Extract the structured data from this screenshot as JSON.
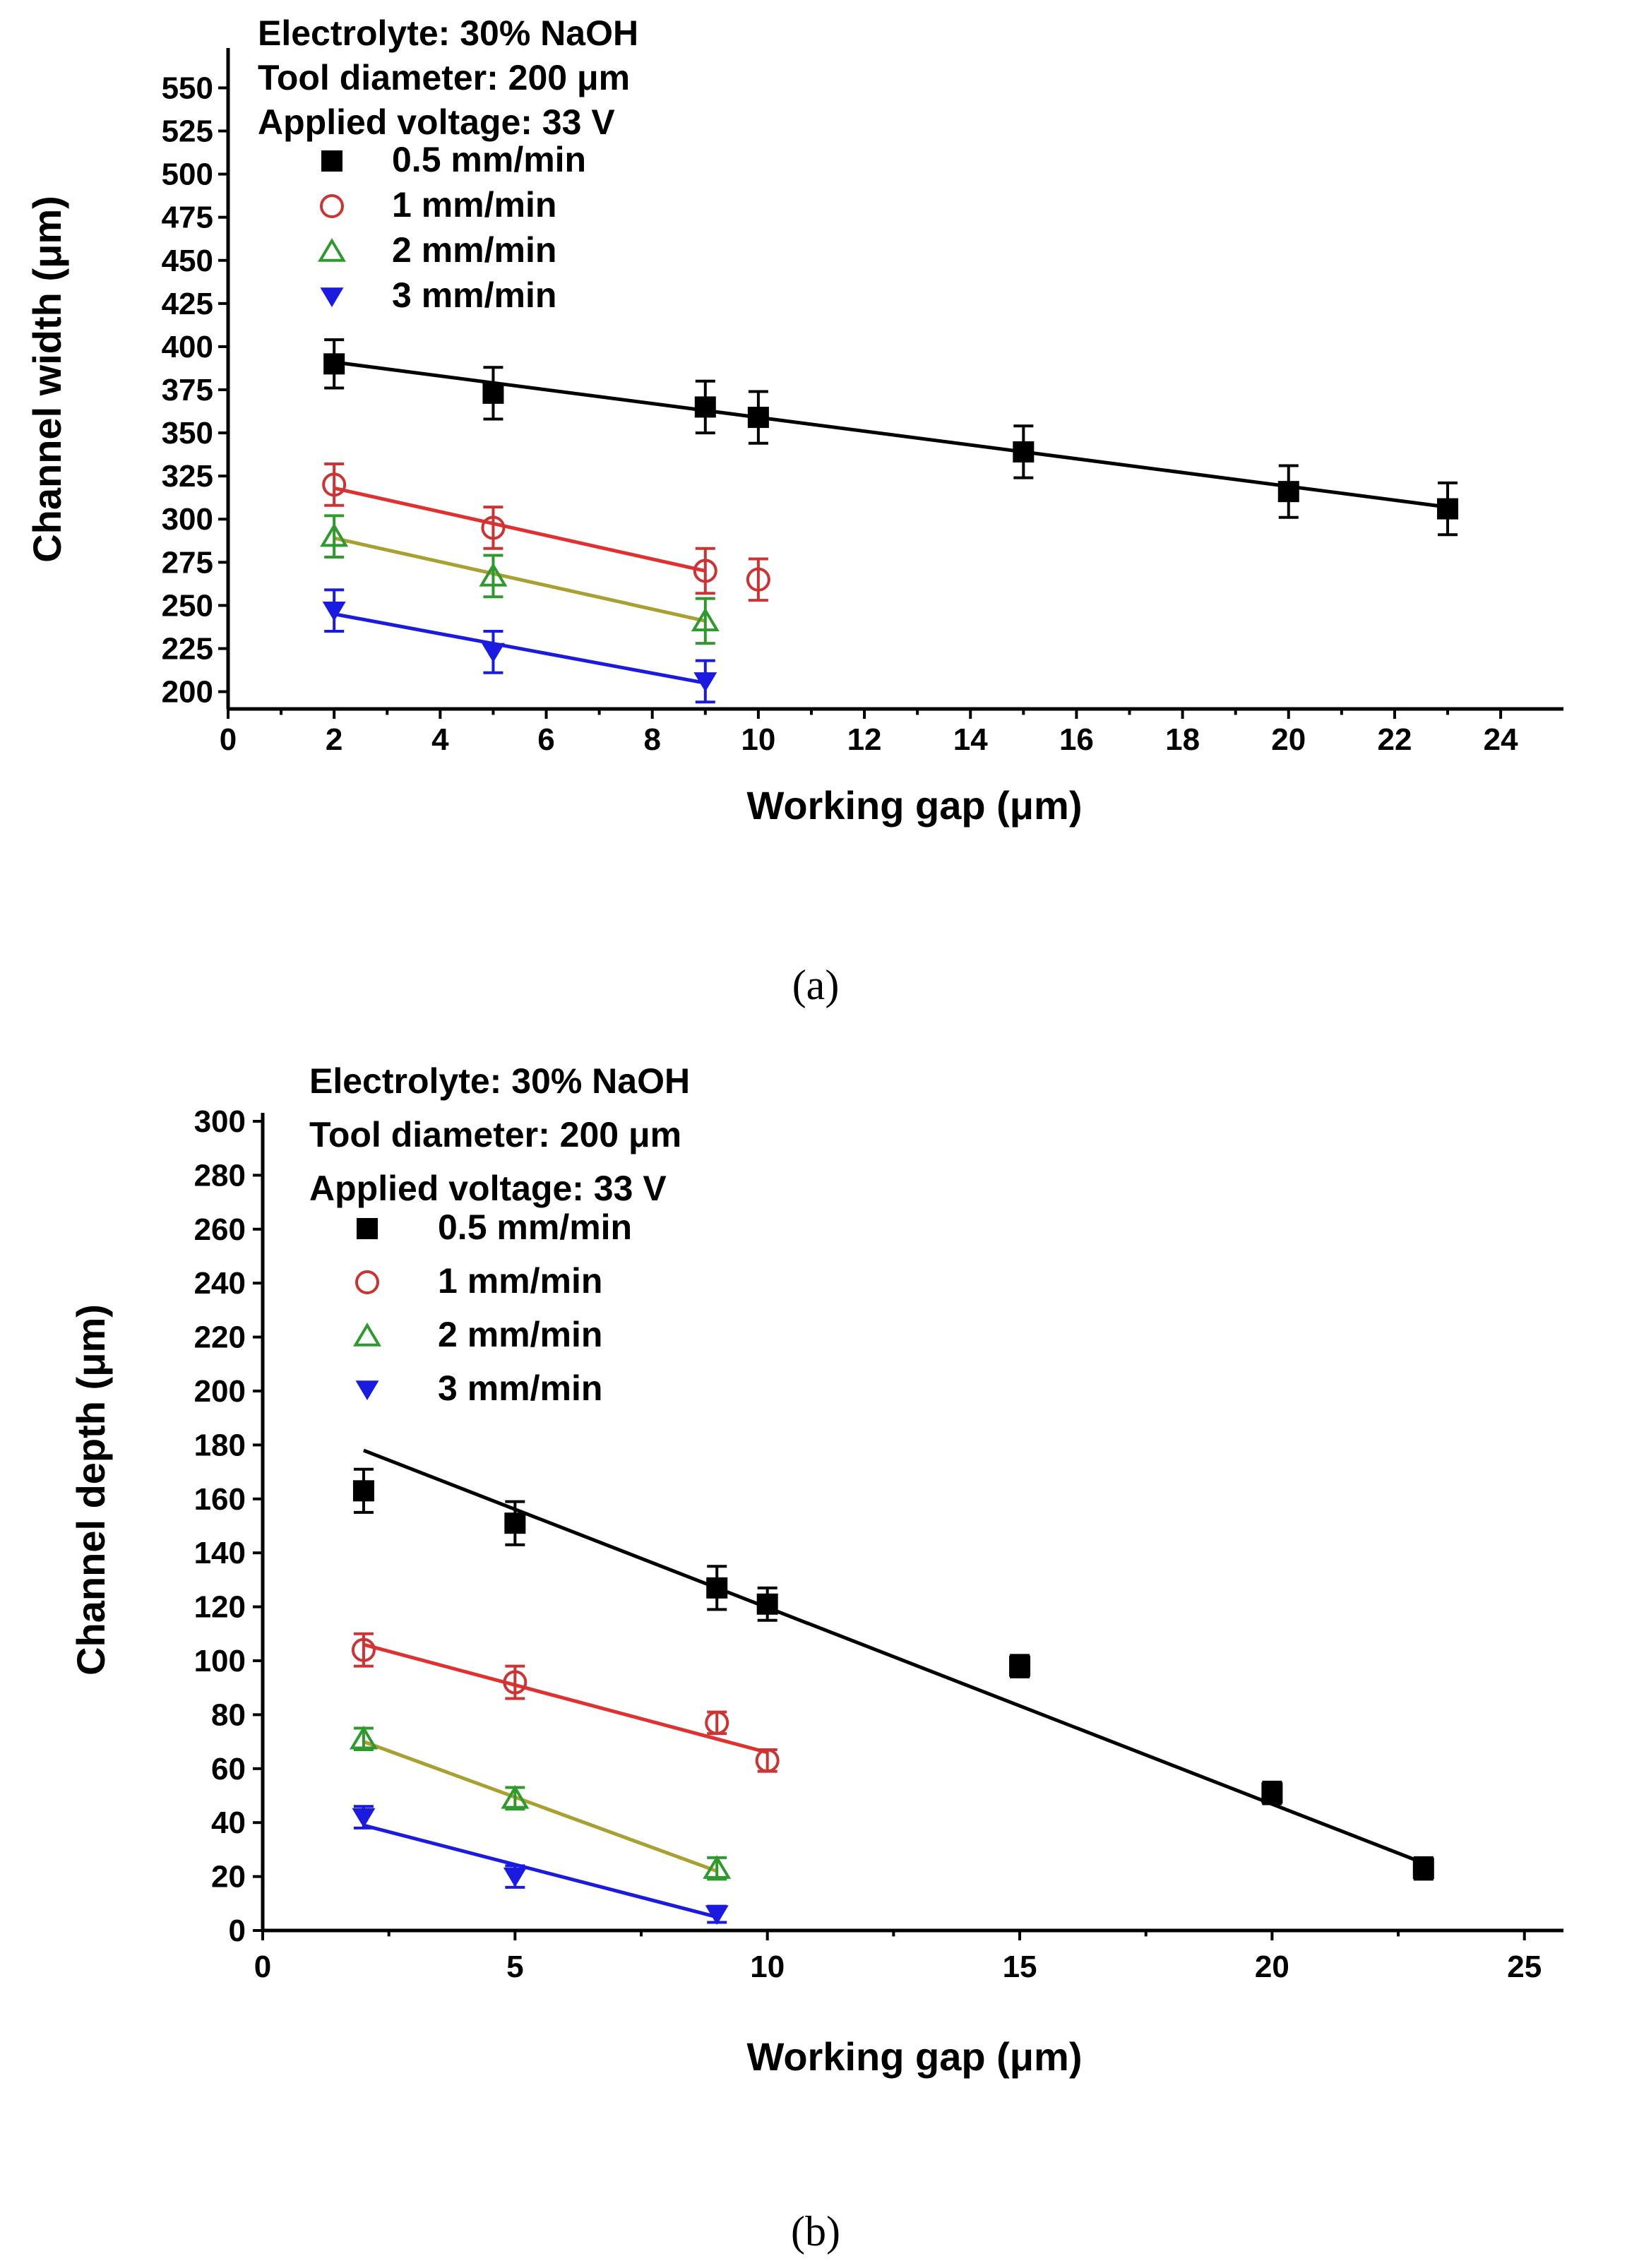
{
  "chart_data": [
    {
      "id": "a",
      "type": "scatter",
      "caption": "(a)",
      "annotations": [
        "Electrolyte: 30% NaOH",
        "Tool diameter: 200 μm",
        "Applied voltage: 33 V"
      ],
      "xlabel": "Working gap (μm)",
      "ylabel": "Channel width (μm)",
      "xlim": [
        0,
        24
      ],
      "ylim": [
        190,
        560
      ],
      "xticks": [
        0,
        2,
        4,
        6,
        8,
        10,
        12,
        14,
        16,
        18,
        20,
        22,
        24
      ],
      "yticks": [
        200,
        225,
        250,
        275,
        300,
        325,
        350,
        375,
        400,
        425,
        450,
        475,
        500,
        525,
        550
      ],
      "series": [
        {
          "name": "0.5 mm/min",
          "marker": "square-filled",
          "color": "#000000",
          "line_color": "#000000",
          "x": [
            2,
            5,
            9,
            10,
            15,
            20,
            23
          ],
          "y": [
            390,
            373,
            365,
            359,
            339,
            316,
            306
          ],
          "err": [
            14,
            15,
            15,
            15,
            15,
            15,
            15
          ],
          "fit": [
            [
              2,
              391
            ],
            [
              23,
              307
            ]
          ]
        },
        {
          "name": "1 mm/min",
          "marker": "circle-open",
          "color": "#cc3333",
          "line_color": "#e03030",
          "x": [
            2,
            5,
            9,
            10
          ],
          "y": [
            320,
            295,
            270,
            265
          ],
          "err": [
            12,
            12,
            13,
            12
          ],
          "fit": [
            [
              2,
              318
            ],
            [
              9,
              270
            ]
          ]
        },
        {
          "name": "2 mm/min",
          "marker": "triangle-open",
          "color": "#2e9a2e",
          "line_color": "#a8a030",
          "x": [
            2,
            5,
            9
          ],
          "y": [
            290,
            267,
            241
          ],
          "err": [
            12,
            12,
            13
          ],
          "fit": [
            [
              2,
              289
            ],
            [
              9,
              241
            ]
          ]
        },
        {
          "name": "3 mm/min",
          "marker": "triangle-down-filled",
          "color": "#1a1ae0",
          "line_color": "#1a1ae0",
          "x": [
            2,
            5,
            9
          ],
          "y": [
            247,
            223,
            206
          ],
          "err": [
            12,
            12,
            12
          ],
          "fit": [
            [
              2,
              245
            ],
            [
              9,
              205
            ]
          ]
        }
      ]
    },
    {
      "id": "b",
      "type": "scatter",
      "caption": "(b)",
      "annotations": [
        "Electrolyte: 30% NaOH",
        "Tool diameter: 200 μm",
        "Applied voltage: 33 V"
      ],
      "xlabel": "Working gap (μm)",
      "ylabel": "Channel depth (μm)",
      "xlim": [
        0,
        25
      ],
      "ylim": [
        0,
        300
      ],
      "xticks": [
        0,
        5,
        10,
        15,
        20,
        25
      ],
      "yticks": [
        0,
        20,
        40,
        60,
        80,
        100,
        120,
        140,
        160,
        180,
        200,
        220,
        240,
        260,
        280,
        300
      ],
      "series": [
        {
          "name": "0.5 mm/min",
          "marker": "square-filled",
          "color": "#000000",
          "line_color": "#000000",
          "x": [
            2,
            5,
            9,
            10,
            15,
            20,
            23
          ],
          "y": [
            163,
            151,
            127,
            121,
            98,
            51,
            23
          ],
          "err": [
            8,
            8,
            8,
            6,
            4,
            4,
            4
          ],
          "fit": [
            [
              2,
              178
            ],
            [
              23,
              25
            ]
          ]
        },
        {
          "name": "1 mm/min",
          "marker": "circle-open",
          "color": "#cc3333",
          "line_color": "#e03030",
          "x": [
            2,
            5,
            9,
            10
          ],
          "y": [
            104,
            92,
            77,
            63
          ],
          "err": [
            6,
            6,
            4,
            4
          ],
          "fit": [
            [
              2,
              106
            ],
            [
              10,
              66
            ]
          ]
        },
        {
          "name": "2 mm/min",
          "marker": "triangle-open",
          "color": "#2e9a2e",
          "line_color": "#a8a030",
          "x": [
            2,
            5,
            9
          ],
          "y": [
            71,
            49,
            23
          ],
          "err": [
            4,
            4,
            4
          ],
          "fit": [
            [
              2,
              70
            ],
            [
              9,
              22
            ]
          ]
        },
        {
          "name": "3 mm/min",
          "marker": "triangle-down-filled",
          "color": "#1a1ae0",
          "line_color": "#1a1ae0",
          "x": [
            2,
            5,
            9
          ],
          "y": [
            42,
            20,
            6
          ],
          "err": [
            4,
            4,
            3
          ],
          "fit": [
            [
              2,
              39
            ],
            [
              9,
              5
            ]
          ]
        }
      ]
    }
  ]
}
